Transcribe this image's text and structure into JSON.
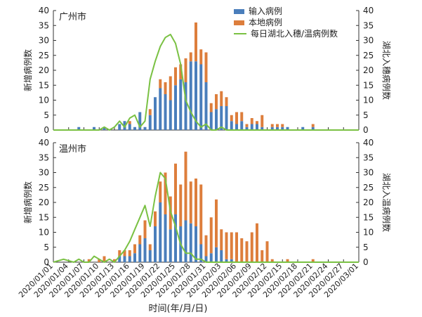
{
  "xlabel": "时间(年/月/日)",
  "legend": {
    "imported": "输入病例",
    "local": "本地病例",
    "hubei": "每日湖北入穗/温病例数"
  },
  "colors": {
    "imported": "#4a7ebb",
    "local": "#dd7e3c",
    "hubei": "#7ac143",
    "axis": "#333333"
  },
  "chart_data": [
    {
      "type": "bar",
      "subtype": "stacked-bar-with-secondary-line",
      "panel_label": "广州市",
      "ylabel_left": "新增病例数",
      "ylabel_right": "湖北入穗病例数",
      "ylim": [
        0,
        40
      ],
      "ylim_right": [
        0,
        40
      ],
      "yticks": [
        "0",
        "5",
        "10",
        "15",
        "20",
        "25",
        "30",
        "35",
        "40"
      ],
      "x_start": "2020-01-01",
      "x_end": "2020-03-01",
      "xtick_labels": [
        "2020/01/01",
        "2020/01/04",
        "2020/01/07",
        "2020/01/10",
        "2020/01/13",
        "2020/01/16",
        "2020/01/19",
        "2020/01/22",
        "2020/01/25",
        "2020/01/28",
        "2020/01/31",
        "2020/02/03",
        "2020/02/06",
        "2020/02/09",
        "2020/02/12",
        "2020/02/15",
        "2020/02/18",
        "2020/02/21",
        "2020/02/24",
        "2020/02/27",
        "2020/03/01"
      ],
      "series": [
        {
          "name": "输入病例",
          "stack": "cases",
          "points": [
            [
              "2020-01-06",
              1
            ],
            [
              "2020-01-09",
              1
            ],
            [
              "2020-01-11",
              1
            ],
            [
              "2020-01-14",
              2
            ],
            [
              "2020-01-15",
              3
            ],
            [
              "2020-01-16",
              2
            ],
            [
              "2020-01-17",
              1
            ],
            [
              "2020-01-18",
              6
            ],
            [
              "2020-01-19",
              1
            ],
            [
              "2020-01-20",
              5
            ],
            [
              "2020-01-21",
              11
            ],
            [
              "2020-01-22",
              14
            ],
            [
              "2020-01-23",
              12
            ],
            [
              "2020-01-24",
              10
            ],
            [
              "2020-01-25",
              15
            ],
            [
              "2020-01-26",
              17
            ],
            [
              "2020-01-27",
              16
            ],
            [
              "2020-01-28",
              23
            ],
            [
              "2020-01-29",
              23
            ],
            [
              "2020-01-30",
              22
            ],
            [
              "2020-01-31",
              16
            ],
            [
              "2020-02-01",
              6
            ],
            [
              "2020-02-02",
              7
            ],
            [
              "2020-02-03",
              8
            ],
            [
              "2020-02-04",
              8
            ],
            [
              "2020-02-05",
              3
            ],
            [
              "2020-02-06",
              2
            ],
            [
              "2020-02-07",
              3
            ],
            [
              "2020-02-08",
              1
            ],
            [
              "2020-02-09",
              2
            ],
            [
              "2020-02-10",
              2
            ],
            [
              "2020-02-11",
              1
            ],
            [
              "2020-02-13",
              1
            ],
            [
              "2020-02-14",
              1
            ],
            [
              "2020-02-15",
              1
            ],
            [
              "2020-02-16",
              1
            ],
            [
              "2020-02-19",
              1
            ],
            [
              "2020-02-21",
              1
            ]
          ]
        },
        {
          "name": "本地病例",
          "stack": "cases",
          "points": [
            [
              "2020-01-16",
              1
            ],
            [
              "2020-01-20",
              2
            ],
            [
              "2020-01-22",
              3
            ],
            [
              "2020-01-23",
              4
            ],
            [
              "2020-01-24",
              8
            ],
            [
              "2020-01-25",
              6
            ],
            [
              "2020-01-26",
              5
            ],
            [
              "2020-01-27",
              8
            ],
            [
              "2020-01-28",
              3
            ],
            [
              "2020-01-29",
              13
            ],
            [
              "2020-01-30",
              5
            ],
            [
              "2020-01-31",
              10
            ],
            [
              "2020-02-01",
              3
            ],
            [
              "2020-02-02",
              5
            ],
            [
              "2020-02-03",
              5
            ],
            [
              "2020-02-04",
              3
            ],
            [
              "2020-02-05",
              2
            ],
            [
              "2020-02-06",
              4
            ],
            [
              "2020-02-07",
              3
            ],
            [
              "2020-02-08",
              1
            ],
            [
              "2020-02-09",
              2
            ],
            [
              "2020-02-10",
              1
            ],
            [
              "2020-02-11",
              4
            ],
            [
              "2020-02-13",
              1
            ],
            [
              "2020-02-14",
              1
            ],
            [
              "2020-02-15",
              1
            ],
            [
              "2020-02-21",
              1
            ]
          ]
        },
        {
          "name": "每日湖北入穗/温病例数",
          "type": "line",
          "axis": "right",
          "points": [
            [
              "2020-01-01",
              0
            ],
            [
              "2020-01-10",
              0
            ],
            [
              "2020-01-11",
              1
            ],
            [
              "2020-01-12",
              0
            ],
            [
              "2020-01-13",
              1
            ],
            [
              "2020-01-14",
              3
            ],
            [
              "2020-01-15",
              1
            ],
            [
              "2020-01-16",
              4
            ],
            [
              "2020-01-17",
              5
            ],
            [
              "2020-01-18",
              1
            ],
            [
              "2020-01-19",
              3
            ],
            [
              "2020-01-20",
              17
            ],
            [
              "2020-01-21",
              23
            ],
            [
              "2020-01-22",
              28
            ],
            [
              "2020-01-23",
              31
            ],
            [
              "2020-01-24",
              32
            ],
            [
              "2020-01-25",
              29
            ],
            [
              "2020-01-26",
              22
            ],
            [
              "2020-01-27",
              10
            ],
            [
              "2020-01-28",
              6
            ],
            [
              "2020-01-29",
              3
            ],
            [
              "2020-01-30",
              1
            ],
            [
              "2020-01-31",
              2
            ],
            [
              "2020-02-01",
              0
            ],
            [
              "2020-02-02",
              0
            ],
            [
              "2020-02-03",
              1
            ],
            [
              "2020-02-04",
              0
            ],
            [
              "2020-02-05",
              0
            ],
            [
              "2020-03-01",
              0
            ]
          ]
        }
      ]
    },
    {
      "type": "bar",
      "subtype": "stacked-bar-with-secondary-line",
      "panel_label": "温州市",
      "ylabel_left": "新增病例数",
      "ylabel_right": "湖北入温病例数",
      "ylim": [
        0,
        40
      ],
      "ylim_right": [
        0,
        40
      ],
      "yticks": [
        "0",
        "5",
        "10",
        "15",
        "20",
        "25",
        "30",
        "35",
        "40"
      ],
      "x_start": "2020-01-01",
      "x_end": "2020-03-01",
      "xtick_labels": [
        "2020/01/01",
        "2020/01/04",
        "2020/01/07",
        "2020/01/10",
        "2020/01/13",
        "2020/01/16",
        "2020/01/19",
        "2020/01/22",
        "2020/01/25",
        "2020/01/28",
        "2020/01/31",
        "2020/02/03",
        "2020/02/06",
        "2020/02/09",
        "2020/02/12",
        "2020/02/15",
        "2020/02/18",
        "2020/02/21",
        "2020/02/24",
        "2020/02/27",
        "2020/03/01"
      ],
      "series": [
        {
          "name": "输入病例",
          "stack": "cases",
          "points": [
            [
              "2020-01-14",
              2
            ],
            [
              "2020-01-15",
              2
            ],
            [
              "2020-01-16",
              2
            ],
            [
              "2020-01-17",
              3
            ],
            [
              "2020-01-18",
              6
            ],
            [
              "2020-01-19",
              8
            ],
            [
              "2020-01-20",
              4
            ],
            [
              "2020-01-21",
              12
            ],
            [
              "2020-01-22",
              20
            ],
            [
              "2020-01-23",
              16
            ],
            [
              "2020-01-24",
              11
            ],
            [
              "2020-01-25",
              16
            ],
            [
              "2020-01-26",
              12
            ],
            [
              "2020-01-27",
              14
            ],
            [
              "2020-01-28",
              13
            ],
            [
              "2020-01-29",
              12
            ],
            [
              "2020-01-30",
              6
            ],
            [
              "2020-01-31",
              2
            ],
            [
              "2020-02-01",
              3
            ],
            [
              "2020-02-02",
              5
            ],
            [
              "2020-02-03",
              4
            ],
            [
              "2020-02-04",
              1
            ],
            [
              "2020-02-05",
              1
            ]
          ]
        },
        {
          "name": "本地病例",
          "stack": "cases",
          "points": [
            [
              "2020-01-08",
              1
            ],
            [
              "2020-01-10",
              1
            ],
            [
              "2020-01-11",
              2
            ],
            [
              "2020-01-13",
              1
            ],
            [
              "2020-01-14",
              2
            ],
            [
              "2020-01-15",
              2
            ],
            [
              "2020-01-16",
              2
            ],
            [
              "2020-01-17",
              3
            ],
            [
              "2020-01-18",
              3
            ],
            [
              "2020-01-19",
              6
            ],
            [
              "2020-01-20",
              2
            ],
            [
              "2020-01-21",
              5
            ],
            [
              "2020-01-22",
              7
            ],
            [
              "2020-01-23",
              14
            ],
            [
              "2020-01-24",
              11
            ],
            [
              "2020-01-25",
              17
            ],
            [
              "2020-01-26",
              14
            ],
            [
              "2020-01-27",
              23
            ],
            [
              "2020-01-28",
              14
            ],
            [
              "2020-01-29",
              16
            ],
            [
              "2020-01-30",
              20
            ],
            [
              "2020-01-31",
              7
            ],
            [
              "2020-02-01",
              12
            ],
            [
              "2020-02-02",
              16
            ],
            [
              "2020-02-03",
              7
            ],
            [
              "2020-02-04",
              9
            ],
            [
              "2020-02-05",
              9
            ],
            [
              "2020-02-06",
              10
            ],
            [
              "2020-02-07",
              8
            ],
            [
              "2020-02-08",
              7
            ],
            [
              "2020-02-09",
              10
            ],
            [
              "2020-02-10",
              13
            ],
            [
              "2020-02-11",
              4
            ],
            [
              "2020-02-12",
              7
            ],
            [
              "2020-02-13",
              1
            ],
            [
              "2020-02-16",
              1
            ],
            [
              "2020-02-21",
              1
            ]
          ]
        },
        {
          "name": "每日湖北入穗/温病例数",
          "type": "line",
          "axis": "right",
          "points": [
            [
              "2020-01-01",
              0
            ],
            [
              "2020-01-03",
              1
            ],
            [
              "2020-01-05",
              0
            ],
            [
              "2020-01-06",
              1
            ],
            [
              "2020-01-07",
              0
            ],
            [
              "2020-01-08",
              0
            ],
            [
              "2020-01-09",
              2
            ],
            [
              "2020-01-10",
              1
            ],
            [
              "2020-01-11",
              0
            ],
            [
              "2020-01-12",
              1
            ],
            [
              "2020-01-13",
              0
            ],
            [
              "2020-01-14",
              2
            ],
            [
              "2020-01-15",
              4
            ],
            [
              "2020-01-16",
              7
            ],
            [
              "2020-01-17",
              11
            ],
            [
              "2020-01-18",
              15
            ],
            [
              "2020-01-19",
              19
            ],
            [
              "2020-01-20",
              12
            ],
            [
              "2020-01-21",
              22
            ],
            [
              "2020-01-22",
              30
            ],
            [
              "2020-01-23",
              28
            ],
            [
              "2020-01-24",
              17
            ],
            [
              "2020-01-25",
              12
            ],
            [
              "2020-01-26",
              6
            ],
            [
              "2020-01-27",
              3
            ],
            [
              "2020-01-28",
              3
            ],
            [
              "2020-01-29",
              1
            ],
            [
              "2020-01-30",
              1
            ],
            [
              "2020-01-31",
              0
            ],
            [
              "2020-03-01",
              0
            ]
          ]
        }
      ]
    }
  ]
}
